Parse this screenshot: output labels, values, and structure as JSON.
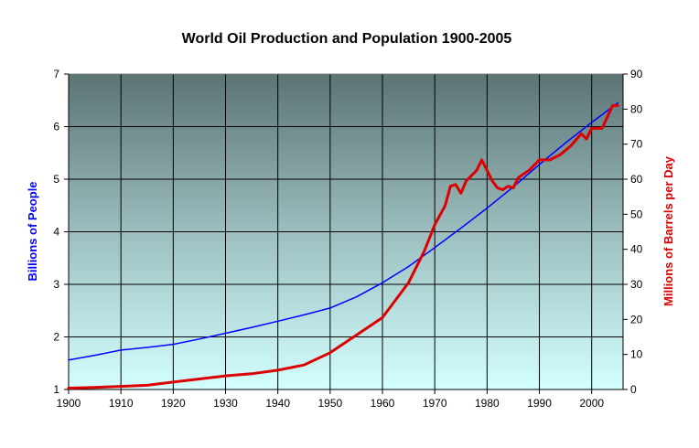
{
  "chart_data": {
    "type": "line",
    "title": "World Oil Production and Population 1900-2005",
    "xlabel": "",
    "ylabel": "Billions of People",
    "y2label": "Millions of Barrels per Day",
    "xlim": [
      1900,
      2006
    ],
    "ylim": [
      1,
      7
    ],
    "y2lim": [
      0,
      90
    ],
    "x_ticks": [
      1900,
      1910,
      1920,
      1930,
      1940,
      1950,
      1960,
      1970,
      1980,
      1990,
      2000
    ],
    "y_ticks": [
      1,
      2,
      3,
      4,
      5,
      6,
      7
    ],
    "y2_ticks": [
      0,
      10,
      20,
      30,
      40,
      50,
      60,
      70,
      80,
      90
    ],
    "grid": true,
    "series": [
      {
        "name": "Billions of People",
        "axis": "left",
        "color": "#0000ff",
        "points": [
          [
            1900,
            1.56
          ],
          [
            1905,
            1.65
          ],
          [
            1910,
            1.75
          ],
          [
            1915,
            1.8
          ],
          [
            1920,
            1.86
          ],
          [
            1925,
            1.96
          ],
          [
            1930,
            2.07
          ],
          [
            1935,
            2.18
          ],
          [
            1940,
            2.3
          ],
          [
            1945,
            2.42
          ],
          [
            1950,
            2.55
          ],
          [
            1955,
            2.76
          ],
          [
            1960,
            3.03
          ],
          [
            1965,
            3.34
          ],
          [
            1970,
            3.7
          ],
          [
            1975,
            4.07
          ],
          [
            1980,
            4.45
          ],
          [
            1985,
            4.85
          ],
          [
            1990,
            5.28
          ],
          [
            1995,
            5.69
          ],
          [
            2000,
            6.08
          ],
          [
            2005,
            6.45
          ]
        ]
      },
      {
        "name": "Millions of Barrels per Day",
        "axis": "right",
        "color": "#dd0000",
        "points": [
          [
            1900,
            0.4
          ],
          [
            1905,
            0.6
          ],
          [
            1910,
            0.9
          ],
          [
            1915,
            1.2
          ],
          [
            1920,
            2.1
          ],
          [
            1925,
            3.0
          ],
          [
            1930,
            3.9
          ],
          [
            1935,
            4.5
          ],
          [
            1940,
            5.5
          ],
          [
            1945,
            7.0
          ],
          [
            1950,
            10.5
          ],
          [
            1955,
            15.5
          ],
          [
            1960,
            20.5
          ],
          [
            1965,
            30.5
          ],
          [
            1968,
            39.5
          ],
          [
            1970,
            47.0
          ],
          [
            1972,
            52.5
          ],
          [
            1973,
            58.0
          ],
          [
            1974,
            58.5
          ],
          [
            1975,
            56.0
          ],
          [
            1976,
            59.5
          ],
          [
            1978,
            62.5
          ],
          [
            1979,
            65.5
          ],
          [
            1980,
            62.5
          ],
          [
            1981,
            59.5
          ],
          [
            1982,
            57.5
          ],
          [
            1983,
            57.0
          ],
          [
            1984,
            58.0
          ],
          [
            1985,
            57.5
          ],
          [
            1986,
            60.5
          ],
          [
            1988,
            62.5
          ],
          [
            1990,
            65.5
          ],
          [
            1992,
            65.5
          ],
          [
            1994,
            67.0
          ],
          [
            1996,
            69.5
          ],
          [
            1998,
            73.0
          ],
          [
            1999,
            71.5
          ],
          [
            2000,
            74.5
          ],
          [
            2002,
            74.5
          ],
          [
            2004,
            81.0
          ],
          [
            2005,
            81.0
          ]
        ]
      }
    ]
  }
}
